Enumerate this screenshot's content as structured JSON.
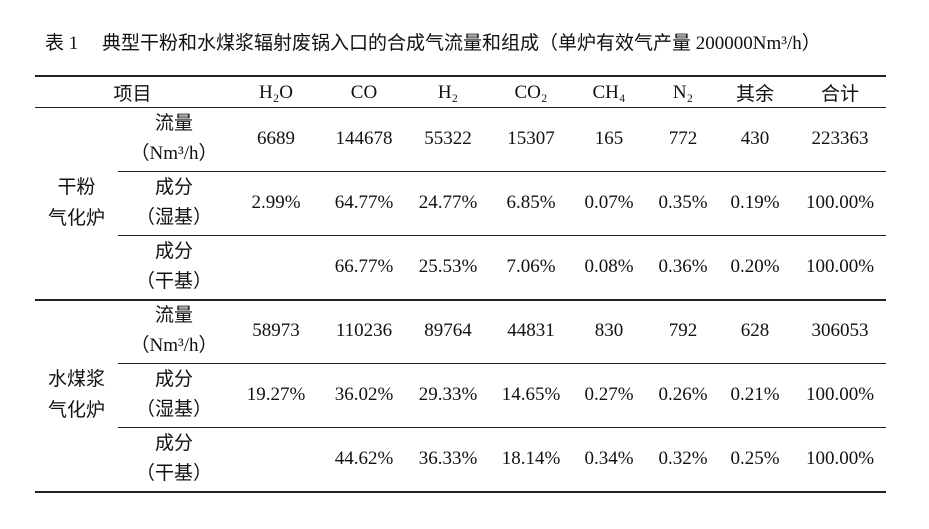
{
  "caption": {
    "number": "表 1",
    "text": "典型干粉和水煤浆辐射废锅入口的合成气流量和组成（单炉有效气产量 200000Nm³/h）"
  },
  "table": {
    "header": [
      "项目",
      "H₂O",
      "CO",
      "H₂",
      "CO₂",
      "CH₄",
      "N₂",
      "其余",
      "合计"
    ],
    "groups": [
      {
        "name": [
          "干粉",
          "气化炉"
        ],
        "rows": [
          {
            "label": [
              "流量",
              "（Nm³/h）"
            ],
            "cells": [
              "6689",
              "144678",
              "55322",
              "15307",
              "165",
              "772",
              "430",
              "223363"
            ]
          },
          {
            "label": [
              "成分",
              "（湿基）"
            ],
            "cells": [
              "2.99%",
              "64.77%",
              "24.77%",
              "6.85%",
              "0.07%",
              "0.35%",
              "0.19%",
              "100.00%"
            ]
          },
          {
            "label": [
              "成分",
              "（干基）"
            ],
            "cells": [
              null,
              "66.77%",
              "25.53%",
              "7.06%",
              "0.08%",
              "0.36%",
              "0.20%",
              "100.00%"
            ]
          }
        ]
      },
      {
        "name": [
          "水煤浆",
          "气化炉"
        ],
        "rows": [
          {
            "label": [
              "流量",
              "（Nm³/h）"
            ],
            "cells": [
              "58973",
              "110236",
              "89764",
              "44831",
              "830",
              "792",
              "628",
              "306053"
            ]
          },
          {
            "label": [
              "成分",
              "（湿基）"
            ],
            "cells": [
              "19.27%",
              "36.02%",
              "29.33%",
              "14.65%",
              "0.27%",
              "0.26%",
              "0.21%",
              "100.00%"
            ]
          },
          {
            "label": [
              "成分",
              "（干基）"
            ],
            "cells": [
              null,
              "44.62%",
              "36.33%",
              "18.14%",
              "0.34%",
              "0.32%",
              "0.25%",
              "100.00%"
            ]
          }
        ]
      }
    ]
  }
}
